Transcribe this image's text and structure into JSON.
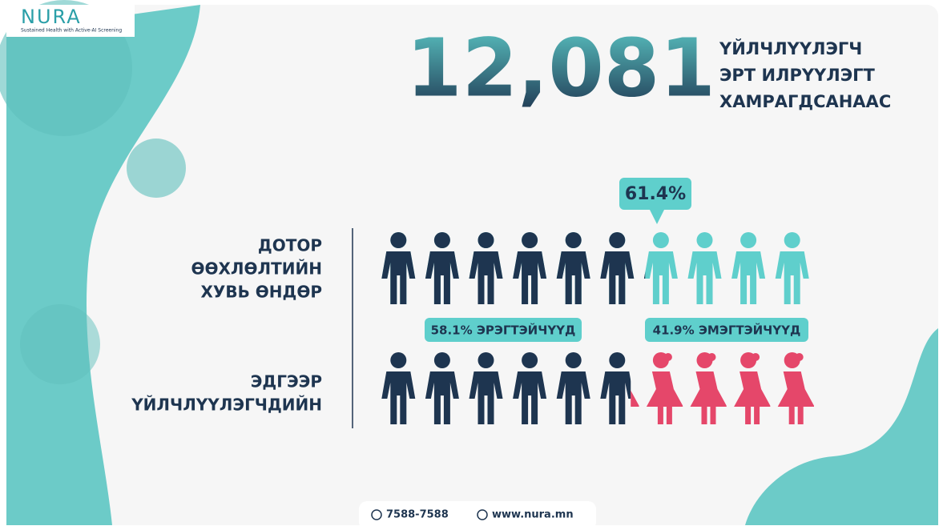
{
  "logo": {
    "name": "NURA",
    "tagline": "Sustained Health with Active-AI Screening"
  },
  "headline": {
    "number": "12,081",
    "lines": [
      "ҮЙЛЧЛҮҮЛЭГЧ",
      "ЭРТ ИЛРҮҮЛЭГТ",
      "ХАМРАГДСАНААС"
    ]
  },
  "prevalence": {
    "lines": [
      "ДОТОР",
      "ӨӨХЛӨЛТИЙН",
      "ХУВЬ ӨНДӨР"
    ],
    "value": 61.4,
    "value_label": "61.4%"
  },
  "gender": {
    "lines": [
      "ЭДГЭЭР",
      "ҮЙЛЧЛҮҮЛЭГЧДИЙН"
    ],
    "male": {
      "value": 58.1,
      "value_label": "58.1% ЭРЭГТЭЙЧҮҮД"
    },
    "female": {
      "value": 41.9,
      "value_label": "41.9% ЭМЭГТЭЙЧҮҮД"
    }
  },
  "footer": {
    "phone": "7588-7588",
    "web": "www.nura.mn"
  }
}
